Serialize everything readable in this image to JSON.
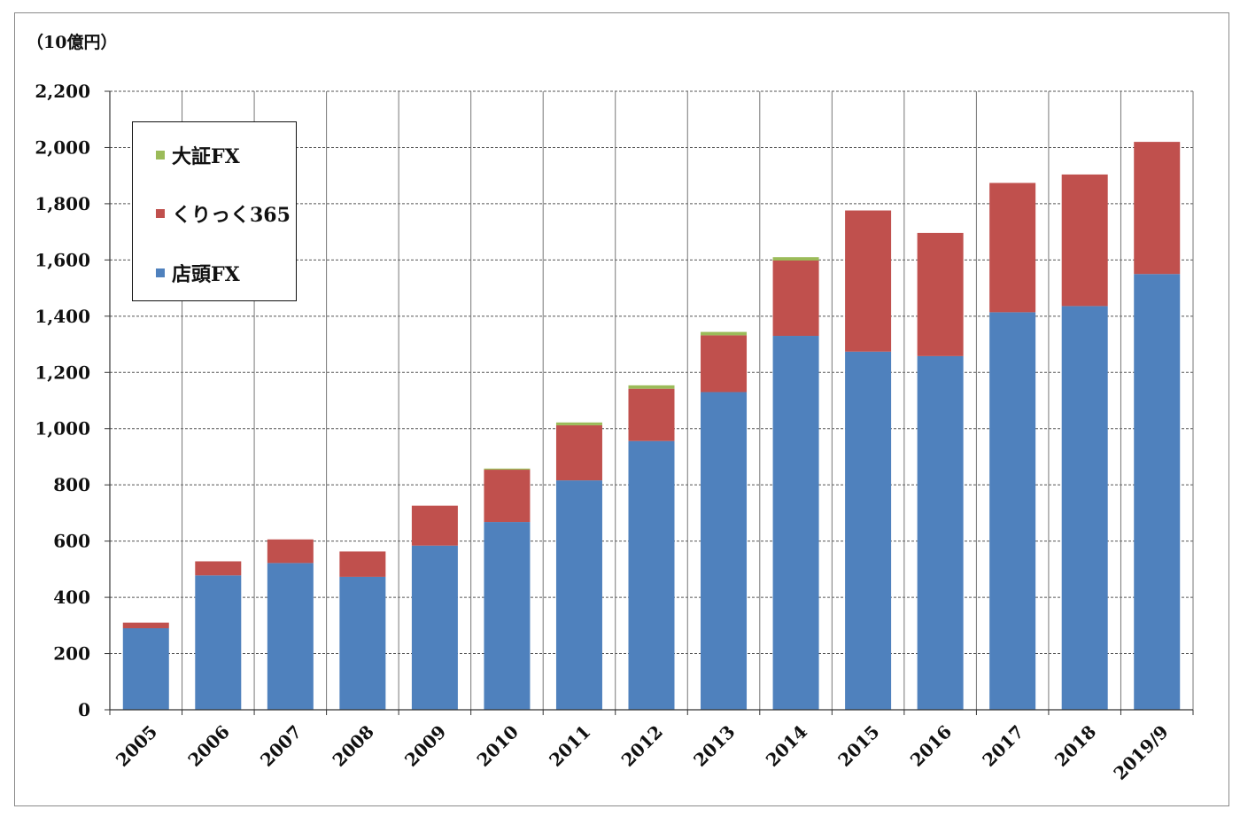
{
  "chart_data": {
    "type": "bar",
    "stacked": true,
    "unit_label": "（10億円）",
    "categories": [
      "2005",
      "2006",
      "2007",
      "2008",
      "2009",
      "2010",
      "2011",
      "2012",
      "2013",
      "2014",
      "2015",
      "2016",
      "2017",
      "2018",
      "2019/9"
    ],
    "series": [
      {
        "name": "店頭FX",
        "color": "#4F81BD",
        "values": [
          290,
          478,
          522,
          473,
          584,
          668,
          816,
          956,
          1130,
          1330,
          1274,
          1258,
          1414,
          1436,
          1550
        ]
      },
      {
        "name": "くりっく365",
        "color": "#C0504D",
        "values": [
          20,
          50,
          84,
          90,
          142,
          186,
          196,
          186,
          202,
          268,
          502,
          438,
          460,
          468,
          470
        ]
      },
      {
        "name": "大証FX",
        "color": "#9BBB59",
        "values": [
          0,
          0,
          0,
          0,
          0,
          4,
          10,
          12,
          12,
          12,
          0,
          0,
          0,
          0,
          0
        ]
      }
    ],
    "y_ticks": [
      "0",
      "200",
      "400",
      "600",
      "800",
      "1,000",
      "1,200",
      "1,400",
      "1,600",
      "1,800",
      "2,000",
      "2,200"
    ],
    "ylim": [
      0,
      2200
    ],
    "grid": true,
    "legend_position": "top-left",
    "legend_order": [
      "大証FX",
      "くりっく365",
      "店頭FX"
    ]
  }
}
